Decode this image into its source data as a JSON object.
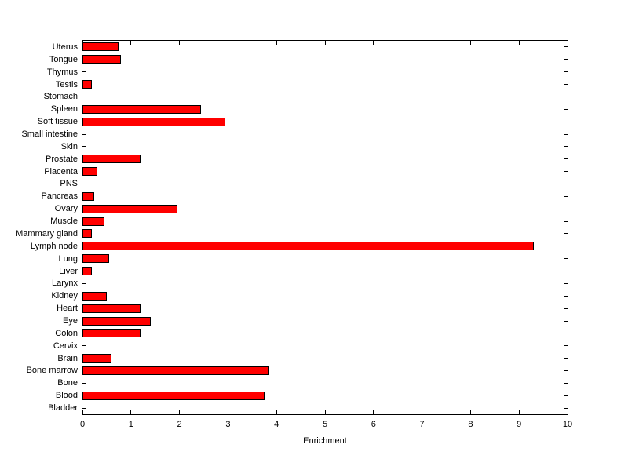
{
  "chart_data": {
    "type": "bar",
    "orientation": "horizontal",
    "title": "",
    "xlabel": "Enrichment",
    "ylabel": "",
    "xlim": [
      0,
      10
    ],
    "xticks": [
      0,
      1,
      2,
      3,
      4,
      5,
      6,
      7,
      8,
      9,
      10
    ],
    "grid": false,
    "bar_color": "#ff0000",
    "bar_edge_color": "#000000",
    "categories": [
      "Uterus",
      "Tongue",
      "Thymus",
      "Testis",
      "Stomach",
      "Spleen",
      "Soft tissue",
      "Small intestine",
      "Skin",
      "Prostate",
      "Placenta",
      "PNS",
      "Pancreas",
      "Ovary",
      "Muscle",
      "Mammary gland",
      "Lymph node",
      "Lung",
      "Liver",
      "Larynx",
      "Kidney",
      "Heart",
      "Eye",
      "Colon",
      "Cervix",
      "Brain",
      "Bone marrow",
      "Bone",
      "Blood",
      "Bladder"
    ],
    "values": [
      0.75,
      0.8,
      0,
      0.2,
      0,
      2.45,
      2.95,
      0,
      0,
      1.2,
      0.3,
      0,
      0.25,
      1.95,
      0.45,
      0.2,
      9.3,
      0.55,
      0.2,
      0,
      0.5,
      1.2,
      1.4,
      1.2,
      0,
      0.6,
      3.85,
      0,
      3.75,
      0
    ]
  }
}
